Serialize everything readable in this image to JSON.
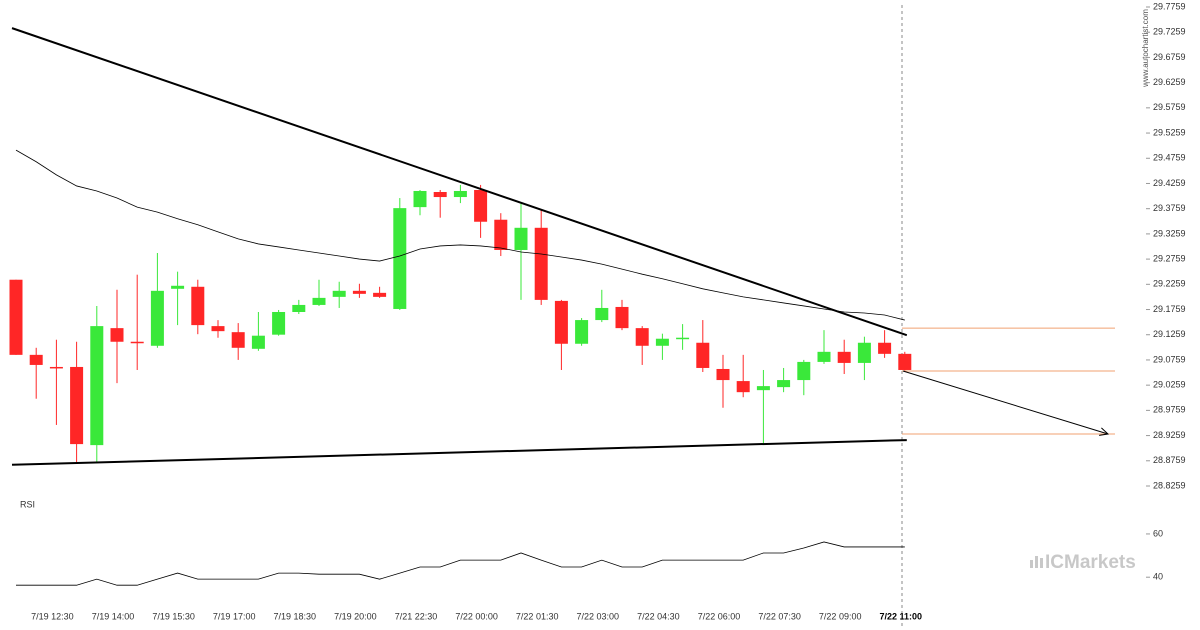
{
  "chart_data": {
    "type": "candlestick",
    "watermark": "www.autochartist.com",
    "brand": "ICMarkets",
    "categories": [
      null,
      null,
      "7/19 12:30",
      null,
      null,
      "7/19 14:00",
      null,
      null,
      "7/19 15:30",
      null,
      null,
      "7/19 17:00",
      null,
      null,
      "7/19 18:30",
      null,
      null,
      "7/19 20:00",
      null,
      null,
      "7/21 22:30",
      null,
      null,
      "7/22 00:00",
      null,
      null,
      "7/22 01:30",
      null,
      null,
      "7/22 03:00",
      null,
      null,
      "7/22 04:30",
      null,
      null,
      "7/22 06:00",
      null,
      null,
      "7/22 07:30",
      null,
      null,
      "7/22 09:00",
      null,
      null,
      "7/22 11:00"
    ],
    "open": [
      29.235,
      29.086,
      29.062,
      29.062,
      28.907,
      29.139,
      29.112,
      29.104,
      29.217,
      29.221,
      29.143,
      29.131,
      29.098,
      29.126,
      29.171,
      29.185,
      29.201,
      29.213,
      29.209,
      29.177,
      29.379,
      29.409,
      29.399,
      29.413,
      29.354,
      29.294,
      29.338,
      29.193,
      29.108,
      29.155,
      29.181,
      29.139,
      29.104,
      29.119,
      29.11,
      29.058,
      29.034,
      29.016,
      29.022,
      29.036,
      29.072,
      29.092,
      29.07,
      29.11,
      29.088
    ],
    "high": [
      29.235,
      29.1,
      29.116,
      29.112,
      29.183,
      29.215,
      29.245,
      29.288,
      29.251,
      29.235,
      29.155,
      29.149,
      29.171,
      29.175,
      29.195,
      29.235,
      29.231,
      29.227,
      29.221,
      29.397,
      29.413,
      29.413,
      29.423,
      29.423,
      29.367,
      29.387,
      29.373,
      29.195,
      29.159,
      29.215,
      29.195,
      29.143,
      29.128,
      29.147,
      29.155,
      29.086,
      29.086,
      29.056,
      29.06,
      29.076,
      29.135,
      29.116,
      29.122,
      29.135,
      29.092
    ],
    "low": [
      29.086,
      28.999,
      28.947,
      28.873,
      28.873,
      29.03,
      29.056,
      29.1,
      29.145,
      29.127,
      29.12,
      29.076,
      29.094,
      29.124,
      29.167,
      29.183,
      29.179,
      29.199,
      29.199,
      29.175,
      29.363,
      29.358,
      29.387,
      29.318,
      29.282,
      29.195,
      29.185,
      29.056,
      29.104,
      29.151,
      29.135,
      29.066,
      29.076,
      29.096,
      29.052,
      28.981,
      29.002,
      28.909,
      29.012,
      29.006,
      29.068,
      29.048,
      29.036,
      29.08,
      29.052
    ],
    "close": [
      29.086,
      29.066,
      29.06,
      28.909,
      29.143,
      29.112,
      29.11,
      29.213,
      29.223,
      29.145,
      29.133,
      29.1,
      29.124,
      29.171,
      29.185,
      29.199,
      29.213,
      29.207,
      29.201,
      29.377,
      29.411,
      29.399,
      29.411,
      29.35,
      29.294,
      29.338,
      29.195,
      29.108,
      29.155,
      29.179,
      29.139,
      29.104,
      29.118,
      29.12,
      29.06,
      29.036,
      29.012,
      29.024,
      29.036,
      29.072,
      29.092,
      29.07,
      29.11,
      29.088,
      29.056
    ],
    "up_color": "#3ae83a",
    "down_color": "#ff2626",
    "ylim": [
      28.8259,
      29.7759
    ],
    "yticks": [
      28.8259,
      28.8759,
      28.9259,
      28.9759,
      29.0259,
      29.0759,
      29.1259,
      29.1759,
      29.2259,
      29.2759,
      29.3259,
      29.3759,
      29.4259,
      29.4759,
      29.5259,
      29.5759,
      29.6259,
      29.6759,
      29.7259,
      29.7759
    ],
    "ma": {
      "color": "#000000",
      "values": [
        29.492,
        29.469,
        29.443,
        29.421,
        29.411,
        29.397,
        29.379,
        29.369,
        29.356,
        29.344,
        29.33,
        29.316,
        29.306,
        29.3,
        29.294,
        29.288,
        29.282,
        29.276,
        29.272,
        29.282,
        29.296,
        29.302,
        29.304,
        29.302,
        29.298,
        29.29,
        29.286,
        29.28,
        29.274,
        29.266,
        29.256,
        29.246,
        29.237,
        29.227,
        29.217,
        29.209,
        29.201,
        29.195,
        29.189,
        29.183,
        29.177,
        29.171,
        29.169,
        29.165,
        29.155
      ]
    },
    "trendlines": [
      {
        "values": [
          29.734,
          29.125
        ],
        "color": "#000000"
      },
      {
        "values": [
          28.868,
          28.917
        ],
        "color": "#000000"
      }
    ],
    "levels": {
      "color": "#f0a070",
      "values": [
        29.139,
        29.054,
        28.929
      ]
    },
    "rsi": {
      "label": "RSI",
      "color": "#000000",
      "ylim": [
        29,
        78
      ],
      "yticks": [
        40,
        60
      ],
      "values": [
        36.3,
        36.3,
        36.3,
        36.3,
        39.1,
        36.3,
        36.3,
        39.1,
        41.9,
        39.1,
        39.1,
        39.1,
        39.1,
        41.9,
        41.9,
        41.4,
        41.4,
        41.4,
        39.1,
        41.9,
        44.7,
        44.7,
        47.9,
        47.9,
        47.9,
        51.2,
        47.9,
        44.7,
        44.7,
        47.9,
        44.7,
        44.7,
        47.9,
        47.9,
        47.9,
        47.9,
        47.9,
        51.2,
        51.2,
        53.5,
        56.3,
        54.0,
        54.0,
        54.0,
        54.0
      ]
    }
  }
}
